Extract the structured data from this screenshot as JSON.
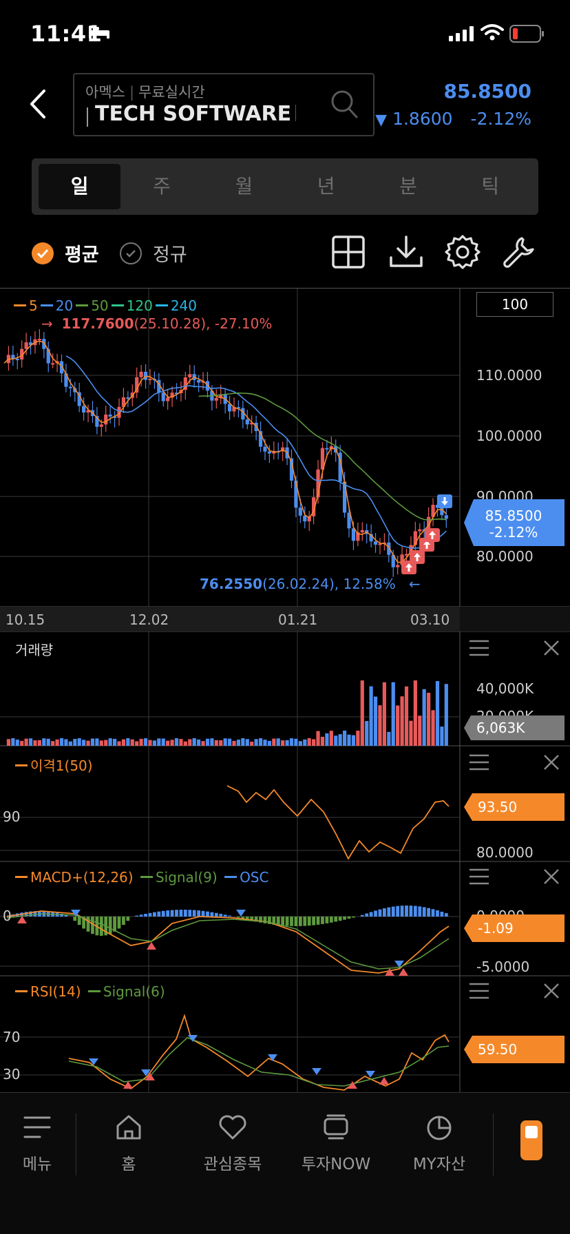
{
  "status": {
    "time": "11:41"
  },
  "header": {
    "exchange": "아멕스",
    "feed": "무료실시간",
    "symbol_name": "TECH SOFTWARE",
    "price": "85.8500",
    "change": "1.8600",
    "change_pct": "-2.12%",
    "down_color": "#4c8ef0"
  },
  "tabs": [
    "일",
    "주",
    "월",
    "년",
    "분",
    "틱"
  ],
  "active_tab": 0,
  "options": {
    "avg_label": "평균",
    "regular_label": "정규"
  },
  "chart": {
    "zoom_value": "100",
    "ma_legend": [
      {
        "label": "5",
        "color": "#f5892a"
      },
      {
        "label": "20",
        "color": "#4c8ef0"
      },
      {
        "label": "50",
        "color": "#5e9a3f"
      },
      {
        "label": "120",
        "color": "#2fc78a"
      },
      {
        "label": "240",
        "color": "#2ab6e6"
      }
    ],
    "high_note_value": "117.7600",
    "high_note_rest": "(25.10.28), -27.10%",
    "low_note_value": "76.2550",
    "low_note_rest": "(26.02.24), 12.58%",
    "price_axis": [
      "110.0000",
      "100.0000",
      "90.0000",
      "80.0000"
    ],
    "current_price": "85.8500",
    "current_pct": "-2.12%",
    "dates": [
      "10.15",
      "12.02",
      "01.21",
      "03.10"
    ]
  },
  "volume": {
    "title": "거래량",
    "axis": [
      "40,000K",
      "20,000K"
    ],
    "current": "6,063K"
  },
  "disparity": {
    "title": "이격1(50)",
    "left_level": "90",
    "axis_bottom": "80.0000",
    "axis_hidden": "90.0000",
    "current": "93.50"
  },
  "macd": {
    "title": "MACD+(12,26)",
    "signal": "Signal(9)",
    "osc": "OSC",
    "zero": "0",
    "axis_top": "0.0000",
    "axis_bottom": "-5.0000",
    "current": "-1.09"
  },
  "rsi": {
    "title": "RSI(14)",
    "signal": "Signal(6)",
    "level_70": "70",
    "level_30": "30",
    "current": "59.50"
  },
  "nav": [
    {
      "label": "메뉴",
      "icon": "menu-icon"
    },
    {
      "label": "홈",
      "icon": "home-icon"
    },
    {
      "label": "관심종목",
      "icon": "heart-icon"
    },
    {
      "label": "투자NOW",
      "icon": "screen-icon"
    },
    {
      "label": "MY자산",
      "icon": "pie-icon"
    }
  ]
}
